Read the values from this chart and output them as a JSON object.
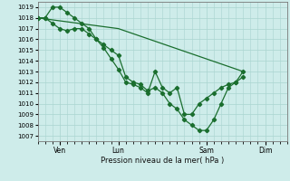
{
  "xlabel": "Pression niveau de la mer( hPa )",
  "background_color": "#ceecea",
  "grid_color": "#aad4d0",
  "line_color": "#1a6e2e",
  "ylim": [
    1006.5,
    1019.5
  ],
  "yticks": [
    1007,
    1008,
    1009,
    1010,
    1011,
    1012,
    1013,
    1014,
    1015,
    1016,
    1017,
    1018,
    1019
  ],
  "xlim": [
    0,
    168
  ],
  "x_tick_positions": [
    18,
    66,
    138,
    186
  ],
  "x_tick_labels": [
    "Ven",
    "Lun",
    "Sam",
    "Dim"
  ],
  "total_hours": 204,
  "series1_x": [
    0,
    6,
    12,
    18,
    24,
    30,
    36,
    42,
    48,
    54,
    60,
    66,
    72,
    78,
    84,
    90,
    96,
    102,
    108,
    114,
    120,
    126,
    132,
    138,
    144,
    150,
    156,
    162,
    168
  ],
  "series1_y": [
    1018,
    1018,
    1019,
    1019,
    1018.5,
    1018,
    1017.5,
    1017,
    1016,
    1015.2,
    1014.2,
    1013.2,
    1012,
    1011.8,
    1011.5,
    1011,
    1013,
    1011.5,
    1011,
    1011.5,
    1009,
    1009,
    1010,
    1010.5,
    1011,
    1011.5,
    1011.8,
    1012,
    1013
  ],
  "series2_x": [
    0,
    6,
    12,
    18,
    24,
    30,
    36,
    42,
    48,
    54,
    60,
    66,
    72,
    78,
    84,
    90,
    96,
    102,
    108,
    114,
    120,
    126,
    132,
    138,
    144,
    150,
    156,
    162,
    168
  ],
  "series2_y": [
    1018,
    1018,
    1017.5,
    1017,
    1016.8,
    1017,
    1017,
    1016.5,
    1016,
    1015.5,
    1015,
    1014.5,
    1012.5,
    1012,
    1011.8,
    1011.2,
    1011.5,
    1011,
    1010,
    1009.5,
    1008.5,
    1008,
    1007.5,
    1007.5,
    1008.5,
    1010,
    1011.5,
    1012,
    1012.5
  ],
  "series3_x": [
    0,
    66,
    168
  ],
  "series3_y": [
    1018,
    1017,
    1013
  ]
}
